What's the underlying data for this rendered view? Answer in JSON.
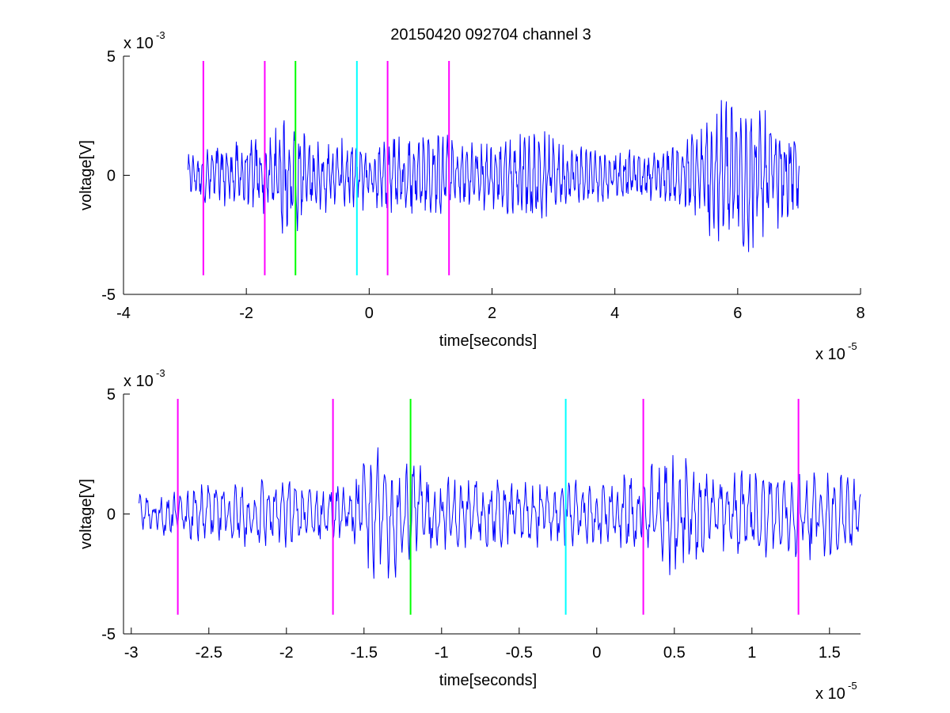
{
  "title": "20150420 092704 channel 3",
  "chart_data": [
    {
      "type": "line",
      "title": "20150420 092704 channel 3",
      "xlabel": "time[seconds]",
      "ylabel": "voltage[V]",
      "x_exponent_label": "x 10",
      "x_exponent": "-5",
      "y_exponent_label": "x 10",
      "y_exponent": "-3",
      "xlim": [
        -4,
        8
      ],
      "ylim": [
        -5,
        5
      ],
      "x_ticks": [
        -4,
        -2,
        0,
        2,
        4,
        6,
        8
      ],
      "x_tick_labels": [
        "-4",
        "-2",
        "0",
        "2",
        "4",
        "6",
        "8"
      ],
      "y_ticks": [
        -5,
        0,
        5
      ],
      "y_tick_labels": [
        "-5",
        "0",
        "5"
      ],
      "grid": false,
      "series": [
        {
          "color": "#0000ff",
          "x_range": [
            -2.95,
            7.0
          ],
          "envelope": [
            [
              -2.95,
              0.8
            ],
            [
              -2.5,
              1.3
            ],
            [
              -2.0,
              1.5
            ],
            [
              -1.6,
              1.6
            ],
            [
              -1.4,
              2.6
            ],
            [
              -1.2,
              2.4
            ],
            [
              -1.0,
              1.6
            ],
            [
              0.0,
              1.4
            ],
            [
              0.2,
              1.6
            ],
            [
              0.7,
              1.8
            ],
            [
              1.0,
              1.7
            ],
            [
              1.5,
              1.5
            ],
            [
              2.0,
              1.4
            ],
            [
              2.8,
              2.0
            ],
            [
              3.2,
              1.3
            ],
            [
              4.0,
              1.1
            ],
            [
              4.5,
              1.0
            ],
            [
              5.0,
              1.2
            ],
            [
              5.5,
              2.6
            ],
            [
              6.0,
              3.6
            ],
            [
              6.5,
              2.4
            ],
            [
              7.0,
              1.7
            ]
          ]
        }
      ],
      "markers": [
        {
          "x": -2.7,
          "color": "#ff00ff"
        },
        {
          "x": -1.7,
          "color": "#ff00ff"
        },
        {
          "x": -1.2,
          "color": "#00ff00"
        },
        {
          "x": -0.2,
          "color": "#00ffff"
        },
        {
          "x": 0.3,
          "color": "#ff00ff"
        },
        {
          "x": 1.3,
          "color": "#ff00ff"
        }
      ],
      "marker_y_range": [
        -4.2,
        4.8
      ]
    },
    {
      "type": "line",
      "xlabel": "time[seconds]",
      "ylabel": "voltage[V]",
      "x_exponent_label": "x 10",
      "x_exponent": "-5",
      "y_exponent_label": "x 10",
      "y_exponent": "-3",
      "xlim": [
        -3.05,
        1.7
      ],
      "ylim": [
        -5,
        5
      ],
      "x_ticks": [
        -3,
        -2.5,
        -2,
        -1.5,
        -1,
        -0.5,
        0,
        0.5,
        1,
        1.5
      ],
      "x_tick_labels": [
        "-3",
        "-2.5",
        "-2",
        "-1.5",
        "-1",
        "-0.5",
        "0",
        "0.5",
        "1",
        "1.5"
      ],
      "y_ticks": [
        -5,
        0,
        5
      ],
      "y_tick_labels": [
        "-5",
        "0",
        "5"
      ],
      "grid": false,
      "series": [
        {
          "color": "#0000ff",
          "x_range": [
            -2.95,
            1.7
          ],
          "envelope": [
            [
              -2.95,
              0.8
            ],
            [
              -2.6,
              1.1
            ],
            [
              -2.3,
              1.4
            ],
            [
              -2.0,
              1.5
            ],
            [
              -1.8,
              1.2
            ],
            [
              -1.6,
              1.2
            ],
            [
              -1.45,
              2.8
            ],
            [
              -1.3,
              2.6
            ],
            [
              -1.15,
              2.2
            ],
            [
              -1.0,
              1.5
            ],
            [
              -0.5,
              1.4
            ],
            [
              -0.2,
              1.3
            ],
            [
              0.0,
              1.3
            ],
            [
              0.3,
              1.7
            ],
            [
              0.45,
              2.6
            ],
            [
              0.8,
              1.7
            ],
            [
              1.3,
              1.8
            ],
            [
              1.7,
              1.6
            ]
          ]
        }
      ],
      "markers": [
        {
          "x": -2.7,
          "color": "#ff00ff"
        },
        {
          "x": -1.7,
          "color": "#ff00ff"
        },
        {
          "x": -1.2,
          "color": "#00ff00"
        },
        {
          "x": -0.2,
          "color": "#00ffff"
        },
        {
          "x": 0.3,
          "color": "#ff00ff"
        },
        {
          "x": 1.3,
          "color": "#ff00ff"
        }
      ],
      "marker_y_range": [
        -4.2,
        4.8
      ]
    }
  ]
}
